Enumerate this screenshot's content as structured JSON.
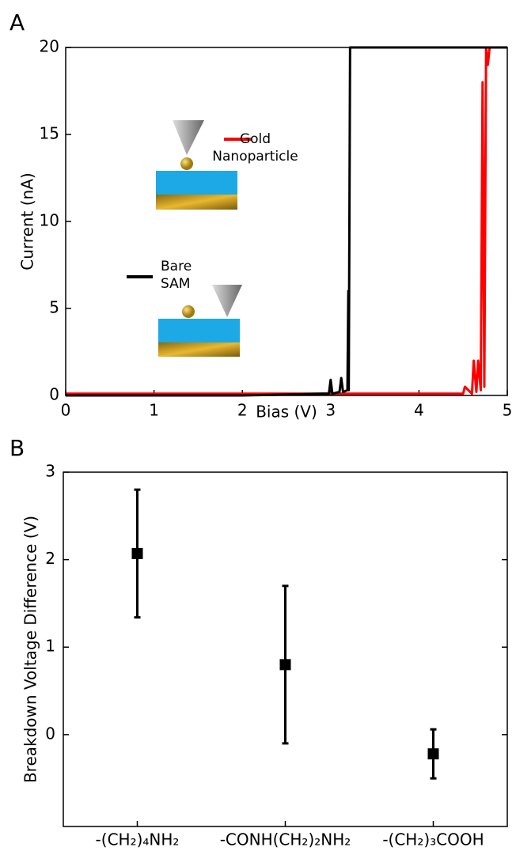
{
  "chart_data": [
    {
      "type": "line",
      "label": "A",
      "xlabel": "Bias (V)",
      "ylabel": "Current (nA)",
      "xlim": [
        0,
        5
      ],
      "ylim": [
        0,
        20
      ],
      "xticks": [
        0,
        1,
        2,
        3,
        4,
        5
      ],
      "yticks": [
        0,
        5,
        10,
        15,
        20
      ],
      "series": [
        {
          "name": "Bare SAM",
          "color": "#000000",
          "x": [
            0,
            0.5,
            1,
            1.5,
            2,
            2.5,
            2.9,
            2.98,
            3.0,
            3.02,
            3.1,
            3.12,
            3.14,
            3.19,
            3.2,
            3.205,
            3.22,
            5
          ],
          "values": [
            0,
            0,
            0,
            0,
            0,
            0.05,
            0.1,
            0.1,
            0.9,
            0.1,
            0.2,
            1.0,
            0.2,
            0.3,
            6,
            0.3,
            20,
            20
          ]
        },
        {
          "name": "Gold Nanoparticle",
          "color": "#ff0000",
          "x": [
            0,
            1,
            2,
            3,
            3.5,
            4,
            4.45,
            4.5,
            4.52,
            4.6,
            4.62,
            4.65,
            4.67,
            4.7,
            4.72,
            4.74,
            4.76,
            4.78,
            4.8,
            5
          ],
          "values": [
            0.1,
            0.1,
            0.1,
            0.1,
            0.1,
            0.1,
            0.1,
            0.1,
            0.5,
            0.1,
            2,
            0.2,
            2,
            0.3,
            18,
            0.5,
            20,
            19,
            20,
            20
          ]
        }
      ]
    },
    {
      "type": "errorbar",
      "label": "B",
      "ylabel": "Breakdown Voltage Difference (V)",
      "categories": [
        "-(CH₂)₄NH₂",
        "-CONH(CH₂)₂NH₂",
        "-(CH₂)₃COOH"
      ],
      "values": [
        2.07,
        0.8,
        -0.22
      ],
      "errors": [
        0.73,
        0.9,
        0.28
      ],
      "color": "#000000",
      "ylim": [
        -1.05,
        3
      ],
      "yticks": [
        0,
        1,
        2,
        3
      ]
    }
  ]
}
